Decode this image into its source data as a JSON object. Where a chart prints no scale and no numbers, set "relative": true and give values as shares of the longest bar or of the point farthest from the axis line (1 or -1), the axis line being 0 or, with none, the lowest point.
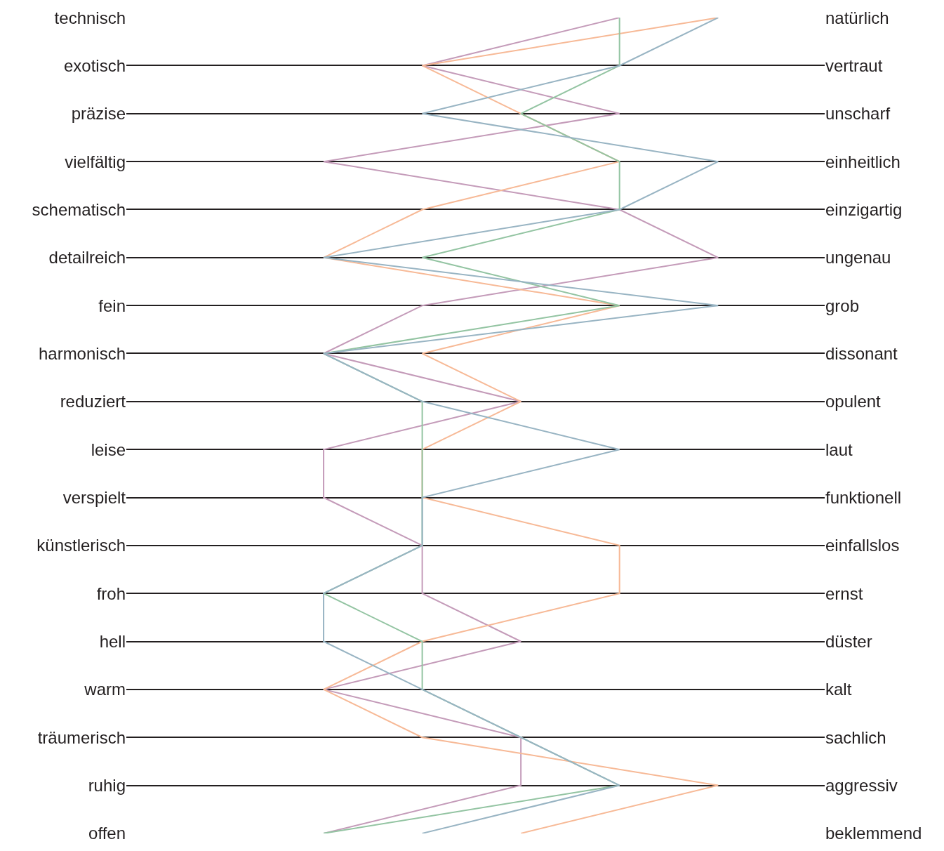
{
  "chart_data": {
    "type": "line",
    "orientation": "horizontal",
    "relative": true,
    "grid": "y",
    "marker": "none",
    "line_style": "solid",
    "categories": [
      "technisch",
      "exotisch",
      "präzise",
      "vielfältig",
      "schematisch",
      "detailreich",
      "fein",
      "harmonisch",
      "reduziert",
      "leise",
      "verspielt",
      "künstlerisch",
      "froh",
      "hell",
      "warm",
      "träumerisch",
      "ruhig",
      "offen"
    ],
    "y2_categories": [
      "natürlich",
      "vertraut",
      "unscharf",
      "einheitlich",
      "einzigartig",
      "ungenau",
      "grob",
      "dissonant",
      "opulent",
      "laut",
      "funktionell",
      "einfallslos",
      "ernst",
      "düster",
      "kalt",
      "sachlich",
      "aggressiv",
      "beklemmend"
    ],
    "series": [
      {
        "color": "#c49bb9",
        "values": [
          0.75,
          0.25,
          0.75,
          0,
          0.75,
          1,
          0.25,
          0,
          0.5,
          0,
          0,
          0.25,
          0.25,
          0.5,
          0,
          0.5,
          0.5,
          0
        ]
      },
      {
        "color": "#f7b996",
        "values": [
          1,
          0.25,
          0.5,
          0.75,
          0.25,
          0,
          0.75,
          0.25,
          0.5,
          0.25,
          0.25,
          0.75,
          0.75,
          0.25,
          0,
          0.25,
          1,
          0.5
        ]
      },
      {
        "color": "#93c4a2",
        "values": [
          0.75,
          0.75,
          0.5,
          0.75,
          0.75,
          0.25,
          0.75,
          0,
          0.25,
          0.25,
          0.25,
          0.25,
          0,
          0.25,
          0.25,
          0.5,
          0.75,
          0
        ]
      },
      {
        "color": "#98b4c3",
        "values": [
          1,
          0.75,
          0.25,
          1,
          0.75,
          0,
          1,
          0,
          0.25,
          0.75,
          0.25,
          0.25,
          0,
          0,
          0.25,
          0.5,
          0.75,
          0.25
        ]
      }
    ]
  }
}
